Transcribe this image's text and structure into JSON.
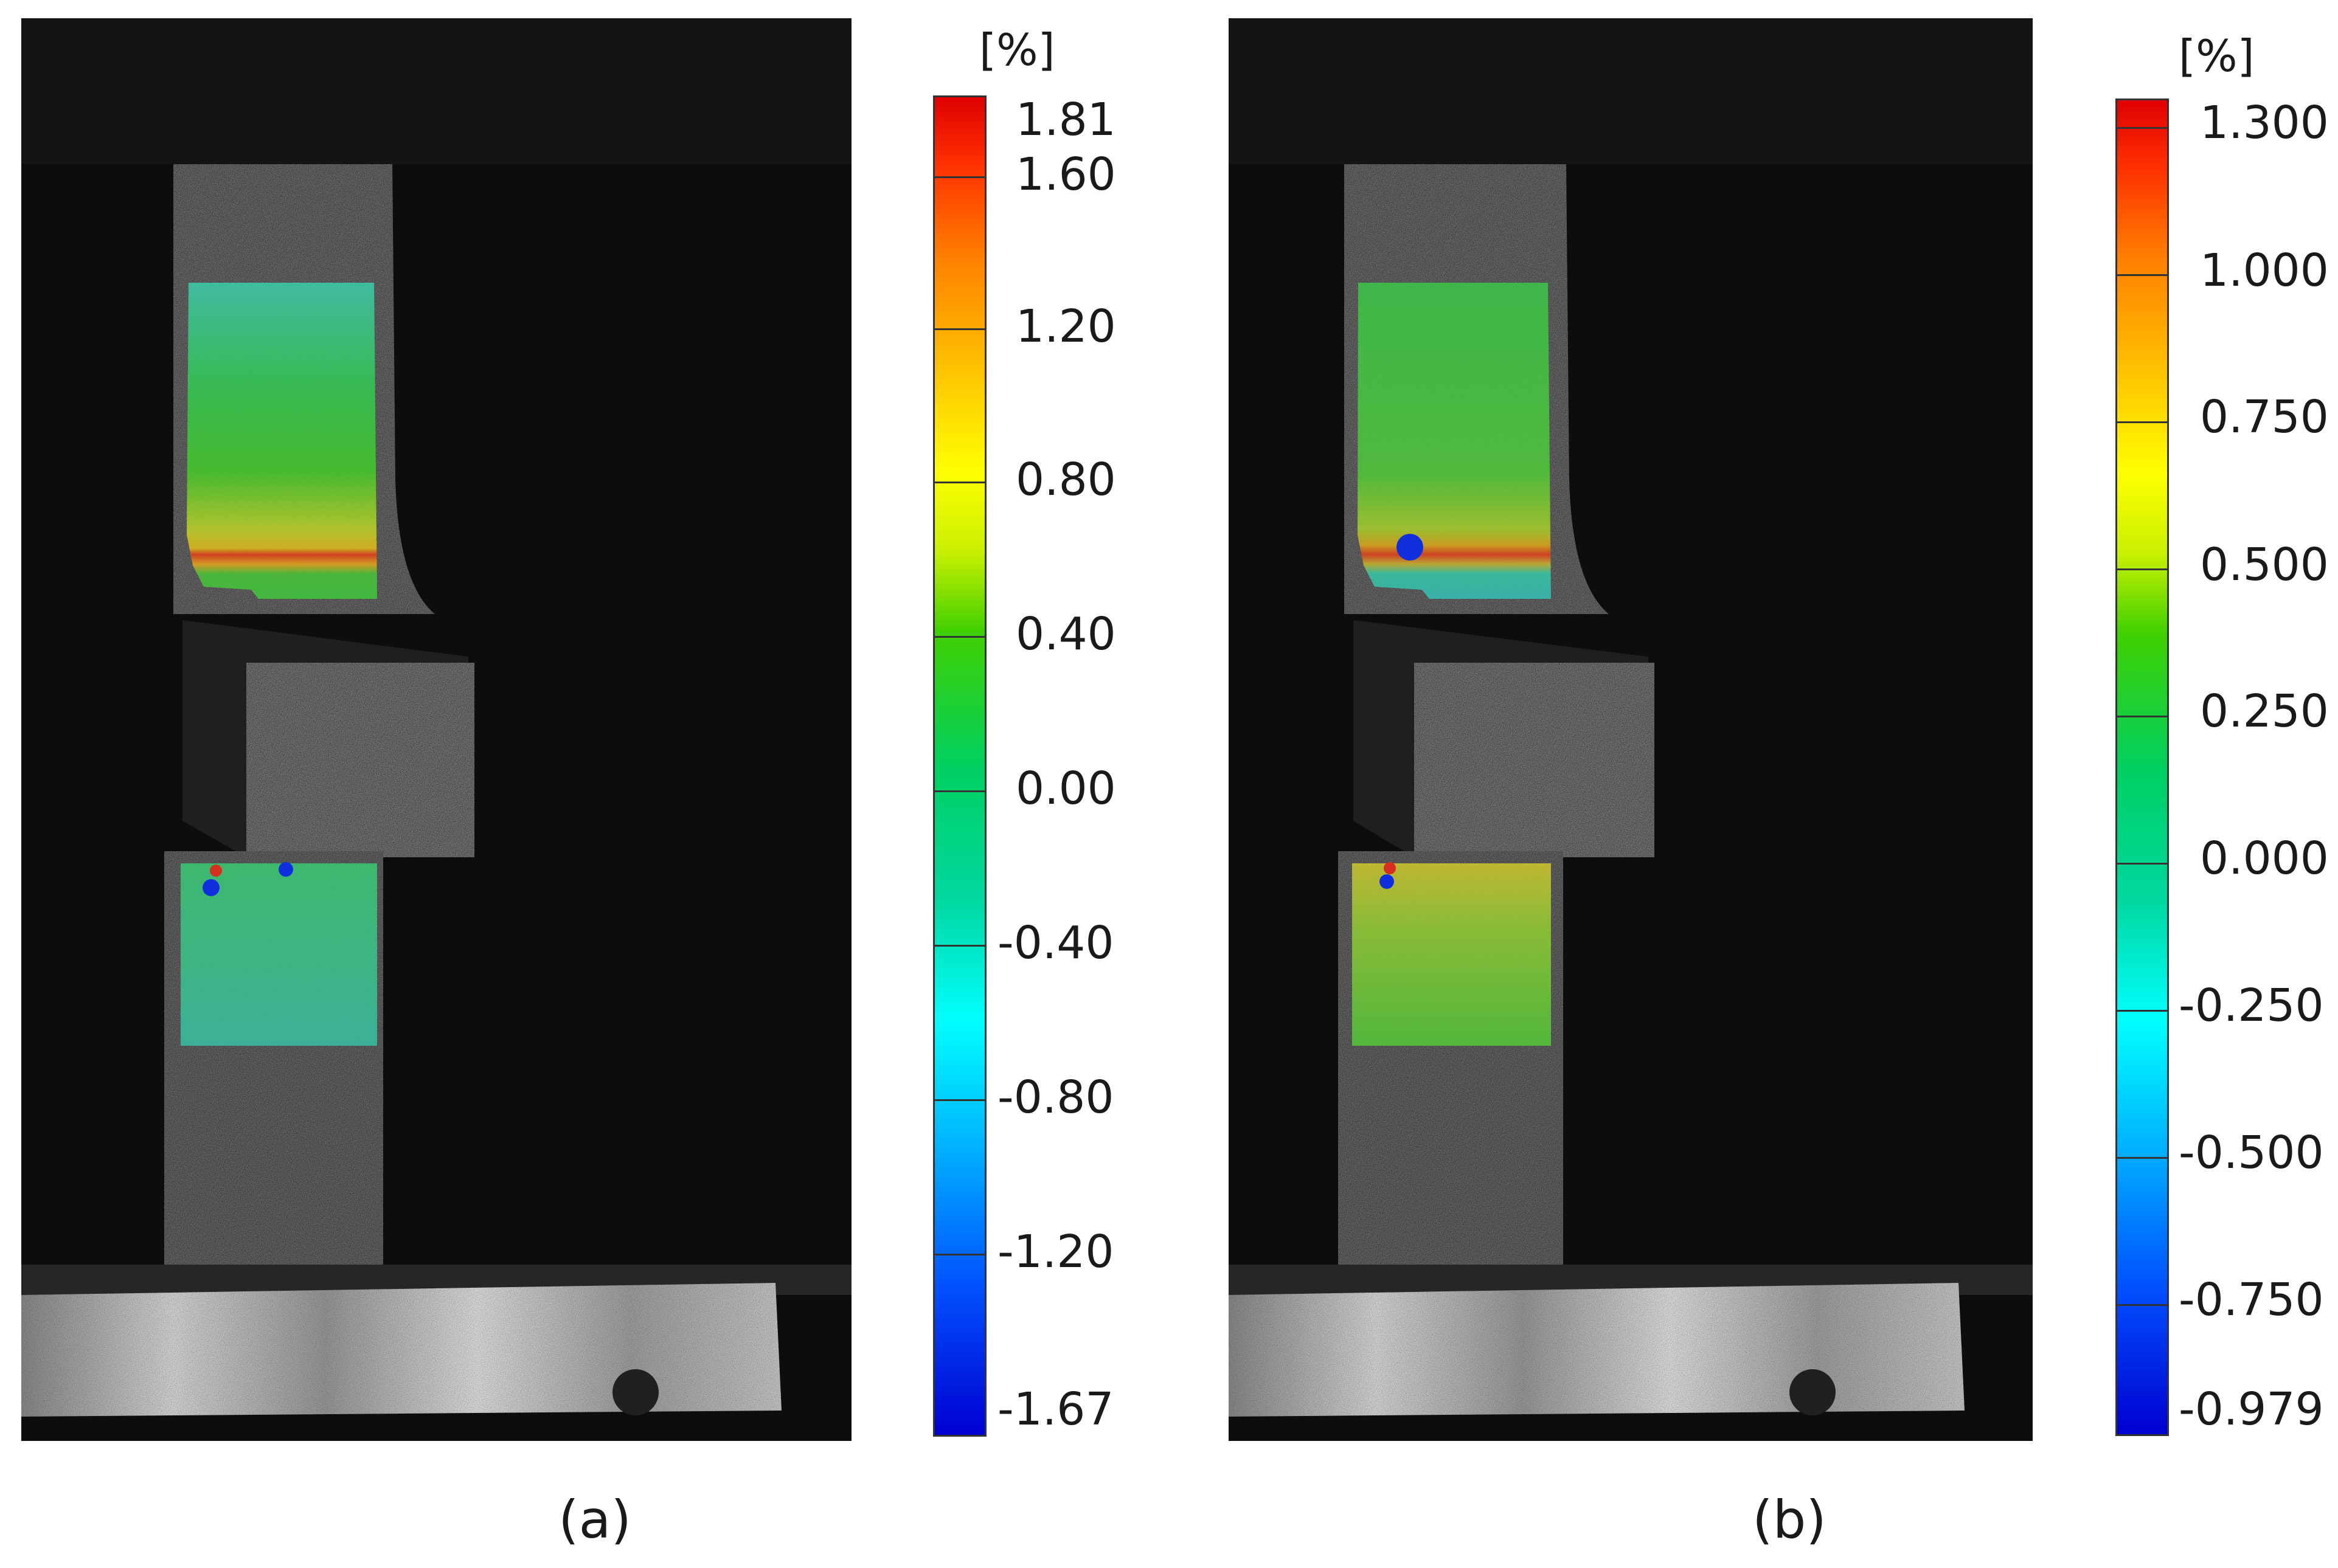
{
  "panels": [
    {
      "caption": "(a)",
      "unit": "[%]",
      "scale_labels": [
        "1.81",
        "1.60",
        "1.20",
        "0.80",
        "0.40",
        "0.00",
        "-0.40",
        "-0.80",
        "-1.20",
        "-1.67"
      ]
    },
    {
      "caption": "(b)",
      "unit": "[%]",
      "scale_labels": [
        "1.300",
        "1.000",
        "0.750",
        "0.500",
        "0.250",
        "0.000",
        "-0.250",
        "-0.500",
        "-0.750",
        "-0.979"
      ]
    }
  ]
}
